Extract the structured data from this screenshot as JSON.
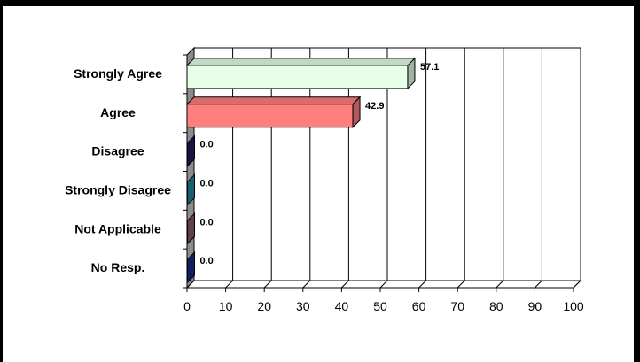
{
  "chart_data": {
    "type": "bar",
    "orientation": "horizontal",
    "categories": [
      "Strongly Agree",
      "Agree",
      "Disagree",
      "Strongly Disagree",
      "Not Applicable",
      "No Resp."
    ],
    "values": [
      57.1,
      42.9,
      0.0,
      0.0,
      0.0,
      0.0
    ],
    "value_labels": [
      "57.1",
      "42.9",
      "0.0",
      "0.0",
      "0.0",
      "0.0"
    ],
    "bar_colors": [
      "#E6FFE6",
      "#FF7F7F",
      "#2A1A5E",
      "#1E8AA0",
      "#8A5A6A",
      "#1A2A8A"
    ],
    "xlim": [
      0,
      100
    ],
    "xticks": [
      "0",
      "10",
      "20",
      "30",
      "40",
      "50",
      "60",
      "70",
      "80",
      "90",
      "100"
    ],
    "grid": true,
    "title": "",
    "xlabel": "",
    "ylabel": ""
  }
}
